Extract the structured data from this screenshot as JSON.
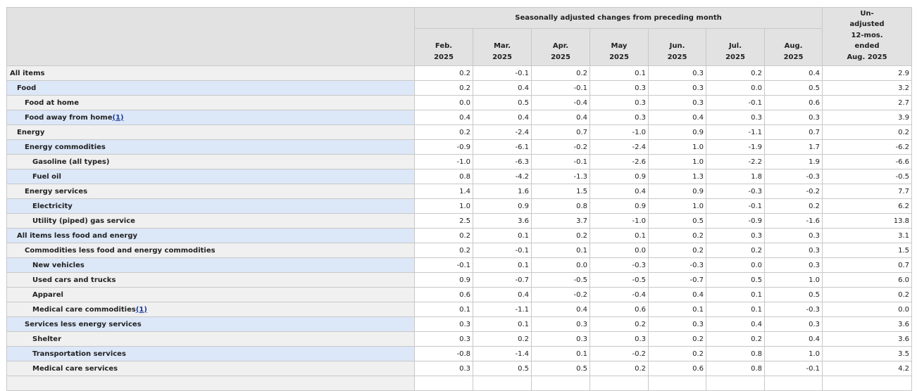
{
  "table": {
    "group_header": "Seasonally adjusted changes from preceding month",
    "months": [
      {
        "month": "Feb.",
        "year": "2025"
      },
      {
        "month": "Mar.",
        "year": "2025"
      },
      {
        "month": "Apr.",
        "year": "2025"
      },
      {
        "month": "May",
        "year": "2025"
      },
      {
        "month": "Jun.",
        "year": "2025"
      },
      {
        "month": "Jul.",
        "year": "2025"
      },
      {
        "month": "Aug.",
        "year": "2025"
      }
    ],
    "unadjusted_header": [
      "Un-",
      "adjusted",
      "12-mos.",
      "ended",
      "Aug. 2025"
    ],
    "rows": [
      {
        "label": "All items",
        "level": 0,
        "highlight": false,
        "values": [
          "0.2",
          "-0.1",
          "0.2",
          "0.1",
          "0.3",
          "0.2",
          "0.4"
        ],
        "unadjusted": "2.9"
      },
      {
        "label": "Food",
        "level": 1,
        "highlight": true,
        "values": [
          "0.2",
          "0.4",
          "-0.1",
          "0.3",
          "0.3",
          "0.0",
          "0.5"
        ],
        "unadjusted": "3.2"
      },
      {
        "label": "Food at home",
        "level": 2,
        "highlight": false,
        "values": [
          "0.0",
          "0.5",
          "-0.4",
          "0.3",
          "0.3",
          "-0.1",
          "0.6"
        ],
        "unadjusted": "2.7"
      },
      {
        "label": "Food away from home",
        "footnote": "(1)",
        "level": 2,
        "highlight": true,
        "values": [
          "0.4",
          "0.4",
          "0.4",
          "0.3",
          "0.4",
          "0.3",
          "0.3"
        ],
        "unadjusted": "3.9"
      },
      {
        "label": "Energy",
        "level": 1,
        "highlight": false,
        "values": [
          "0.2",
          "-2.4",
          "0.7",
          "-1.0",
          "0.9",
          "-1.1",
          "0.7"
        ],
        "unadjusted": "0.2"
      },
      {
        "label": "Energy commodities",
        "level": 2,
        "highlight": true,
        "values": [
          "-0.9",
          "-6.1",
          "-0.2",
          "-2.4",
          "1.0",
          "-1.9",
          "1.7"
        ],
        "unadjusted": "-6.2"
      },
      {
        "label": "Gasoline (all types)",
        "level": 3,
        "highlight": false,
        "values": [
          "-1.0",
          "-6.3",
          "-0.1",
          "-2.6",
          "1.0",
          "-2.2",
          "1.9"
        ],
        "unadjusted": "-6.6"
      },
      {
        "label": "Fuel oil",
        "level": 3,
        "highlight": true,
        "values": [
          "0.8",
          "-4.2",
          "-1.3",
          "0.9",
          "1.3",
          "1.8",
          "-0.3"
        ],
        "unadjusted": "-0.5"
      },
      {
        "label": "Energy services",
        "level": 2,
        "highlight": false,
        "values": [
          "1.4",
          "1.6",
          "1.5",
          "0.4",
          "0.9",
          "-0.3",
          "-0.2"
        ],
        "unadjusted": "7.7"
      },
      {
        "label": "Electricity",
        "level": 3,
        "highlight": true,
        "values": [
          "1.0",
          "0.9",
          "0.8",
          "0.9",
          "1.0",
          "-0.1",
          "0.2"
        ],
        "unadjusted": "6.2"
      },
      {
        "label": "Utility (piped) gas service",
        "level": 3,
        "highlight": false,
        "values": [
          "2.5",
          "3.6",
          "3.7",
          "-1.0",
          "0.5",
          "-0.9",
          "-1.6"
        ],
        "unadjusted": "13.8"
      },
      {
        "label": "All items less food and energy",
        "level": 1,
        "highlight": true,
        "values": [
          "0.2",
          "0.1",
          "0.2",
          "0.1",
          "0.2",
          "0.3",
          "0.3"
        ],
        "unadjusted": "3.1"
      },
      {
        "label": "Commodities less food and energy commodities",
        "level": 2,
        "highlight": false,
        "values": [
          "0.2",
          "-0.1",
          "0.1",
          "0.0",
          "0.2",
          "0.2",
          "0.3"
        ],
        "unadjusted": "1.5"
      },
      {
        "label": "New vehicles",
        "level": 3,
        "highlight": true,
        "values": [
          "-0.1",
          "0.1",
          "0.0",
          "-0.3",
          "-0.3",
          "0.0",
          "0.3"
        ],
        "unadjusted": "0.7"
      },
      {
        "label": "Used cars and trucks",
        "level": 3,
        "highlight": false,
        "values": [
          "0.9",
          "-0.7",
          "-0.5",
          "-0.5",
          "-0.7",
          "0.5",
          "1.0"
        ],
        "unadjusted": "6.0"
      },
      {
        "label": "Apparel",
        "level": 3,
        "highlight": false,
        "values": [
          "0.6",
          "0.4",
          "-0.2",
          "-0.4",
          "0.4",
          "0.1",
          "0.5"
        ],
        "unadjusted": "0.2"
      },
      {
        "label": "Medical care commodities",
        "footnote": "(1)",
        "level": 3,
        "highlight": false,
        "values": [
          "0.1",
          "-1.1",
          "0.4",
          "0.6",
          "0.1",
          "0.1",
          "-0.3"
        ],
        "unadjusted": "0.0"
      },
      {
        "label": "Services less energy services",
        "level": 2,
        "highlight": true,
        "values": [
          "0.3",
          "0.1",
          "0.3",
          "0.2",
          "0.3",
          "0.4",
          "0.3"
        ],
        "unadjusted": "3.6"
      },
      {
        "label": "Shelter",
        "level": 3,
        "highlight": false,
        "values": [
          "0.3",
          "0.2",
          "0.3",
          "0.3",
          "0.2",
          "0.2",
          "0.4"
        ],
        "unadjusted": "3.6"
      },
      {
        "label": "Transportation services",
        "level": 3,
        "highlight": true,
        "values": [
          "-0.8",
          "-1.4",
          "0.1",
          "-0.2",
          "0.2",
          "0.8",
          "1.0"
        ],
        "unadjusted": "3.5"
      },
      {
        "label": "Medical care services",
        "level": 3,
        "highlight": false,
        "values": [
          "0.3",
          "0.5",
          "0.5",
          "0.2",
          "0.6",
          "0.8",
          "-0.1"
        ],
        "unadjusted": "4.2"
      }
    ]
  }
}
